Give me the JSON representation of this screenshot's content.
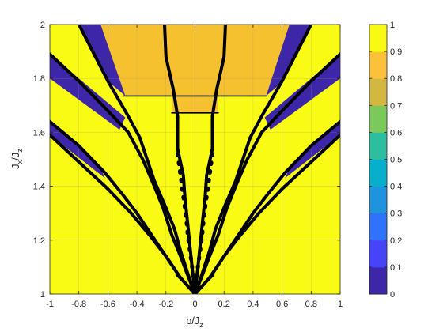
{
  "chart_data": {
    "type": "heatmap",
    "title": "",
    "xlabel": "b/J",
    "xlabel_sub": "z",
    "ylabel": "J",
    "ylabel_mid": "x",
    "ylabel_slash": "/J",
    "ylabel_sub": "z",
    "xlim": [
      -1,
      1
    ],
    "ylim": [
      1,
      2
    ],
    "x_ticks": [
      -1,
      -0.8,
      -0.6,
      -0.4,
      -0.2,
      0,
      0.2,
      0.4,
      0.6,
      0.8,
      1
    ],
    "x_tick_labels": [
      "-1",
      "-0.8",
      "-0.6",
      "-0.4",
      "-0.2",
      "0",
      "0.2",
      "0.4",
      "0.6",
      "0.8",
      "1"
    ],
    "y_ticks": [
      1,
      1.2,
      1.4,
      1.6,
      1.8,
      2
    ],
    "y_tick_labels": [
      "1",
      "1.2",
      "1.4",
      "1.6",
      "1.8",
      "2"
    ],
    "grid": true,
    "colorbar": {
      "range": [
        0,
        1
      ],
      "ticks": [
        0,
        0.1,
        0.2,
        0.3,
        0.4,
        0.5,
        0.6,
        0.7,
        0.8,
        0.9,
        1
      ],
      "tick_labels": [
        "0",
        "0.1",
        "0.2",
        "0.3",
        "0.4",
        "0.5",
        "0.6",
        "0.7",
        "0.8",
        "0.9",
        "1"
      ],
      "levels": [
        "#3e26a8",
        "#4743f8",
        "#2f72fb",
        "#1f93dd",
        "#08afcd",
        "#2dbe9f",
        "#7bc85b",
        "#d3b741",
        "#fbc13a",
        "#f9fa14",
        "#f9fb15"
      ]
    },
    "background_value": 1.0,
    "regions": [
      {
        "value": 0.85,
        "color": "#f6c12e",
        "shape": "top-plateau",
        "polygon": [
          [
            -0.65,
            2.0
          ],
          [
            0.65,
            2.0
          ],
          [
            0.49,
            1.735
          ],
          [
            0.16,
            1.735
          ],
          [
            0.16,
            1.672
          ],
          [
            -0.16,
            1.672
          ],
          [
            -0.16,
            1.735
          ],
          [
            -0.49,
            1.735
          ]
        ]
      },
      {
        "value": 0.05,
        "color": "#3e26a8",
        "shape": "band",
        "polygon": [
          [
            -0.8,
            2.0
          ],
          [
            -0.65,
            2.0
          ],
          [
            -0.48,
            1.735
          ],
          [
            -0.6,
            1.79
          ]
        ]
      },
      {
        "value": 0.05,
        "color": "#3e26a8",
        "shape": "band",
        "polygon": [
          [
            0.65,
            2.0
          ],
          [
            0.8,
            2.0
          ],
          [
            0.61,
            1.79
          ],
          [
            0.49,
            1.735
          ]
        ]
      },
      {
        "value": 0.05,
        "color": "#3e26a8",
        "shape": "band",
        "polygon": [
          [
            -1.0,
            1.89
          ],
          [
            -1.0,
            1.8
          ],
          [
            -0.52,
            1.61
          ],
          [
            -0.48,
            1.655
          ]
        ]
      },
      {
        "value": 0.05,
        "color": "#3e26a8",
        "shape": "band",
        "polygon": [
          [
            1.0,
            1.89
          ],
          [
            0.48,
            1.655
          ],
          [
            0.52,
            1.61
          ],
          [
            1.0,
            1.8
          ]
        ]
      },
      {
        "value": 0.05,
        "color": "#3e26a8",
        "shape": "band",
        "polygon": [
          [
            -1.0,
            1.64
          ],
          [
            -1.0,
            1.59
          ],
          [
            -0.62,
            1.43
          ],
          [
            -0.66,
            1.48
          ]
        ]
      },
      {
        "value": 0.05,
        "color": "#3e26a8",
        "shape": "band",
        "polygon": [
          [
            1.0,
            1.64
          ],
          [
            0.66,
            1.48
          ],
          [
            0.62,
            1.43
          ],
          [
            1.0,
            1.59
          ]
        ]
      }
    ],
    "boundary_curves": [
      {
        "style": "thick-solid",
        "points": [
          [
            -0.21,
            2.0
          ],
          [
            -0.2,
            1.88
          ],
          [
            -0.15,
            1.76
          ],
          [
            -0.12,
            1.66
          ],
          [
            -0.12,
            1.54
          ],
          [
            -0.08,
            1.44
          ],
          [
            -0.07,
            1.36
          ],
          [
            -0.05,
            1.26
          ],
          [
            -0.02,
            1.1
          ],
          [
            0,
            1.0
          ]
        ]
      },
      {
        "style": "thick-solid",
        "points": [
          [
            0.21,
            2.0
          ],
          [
            0.2,
            1.88
          ],
          [
            0.15,
            1.76
          ],
          [
            0.12,
            1.66
          ],
          [
            0.12,
            1.54
          ],
          [
            0.08,
            1.44
          ],
          [
            0.07,
            1.36
          ],
          [
            0.05,
            1.26
          ],
          [
            0.02,
            1.1
          ],
          [
            0,
            1.0
          ]
        ]
      },
      {
        "style": "thick-dotted",
        "points": [
          [
            -0.12,
            1.52
          ],
          [
            -0.1,
            1.44
          ],
          [
            -0.08,
            1.36
          ],
          [
            -0.06,
            1.28
          ],
          [
            -0.05,
            1.22
          ],
          [
            -0.03,
            1.14
          ],
          [
            -0.01,
            1.06
          ]
        ]
      },
      {
        "style": "thick-dotted",
        "points": [
          [
            0.12,
            1.52
          ],
          [
            0.1,
            1.44
          ],
          [
            0.08,
            1.36
          ],
          [
            0.06,
            1.28
          ],
          [
            0.05,
            1.22
          ],
          [
            0.03,
            1.14
          ],
          [
            0.01,
            1.06
          ]
        ]
      },
      {
        "style": "thick-solid",
        "points": [
          [
            -0.8,
            2.0
          ],
          [
            -0.6,
            1.79
          ],
          [
            -0.46,
            1.66
          ],
          [
            -0.38,
            1.58
          ],
          [
            -0.28,
            1.42
          ],
          [
            -0.2,
            1.32
          ],
          [
            -0.14,
            1.24
          ],
          [
            -0.1,
            1.16
          ],
          [
            -0.04,
            1.06
          ],
          [
            0,
            1.0
          ]
        ]
      },
      {
        "style": "thick-solid",
        "points": [
          [
            0.8,
            2.0
          ],
          [
            0.6,
            1.79
          ],
          [
            0.46,
            1.66
          ],
          [
            0.38,
            1.58
          ],
          [
            0.28,
            1.42
          ],
          [
            0.2,
            1.32
          ],
          [
            0.14,
            1.24
          ],
          [
            0.1,
            1.16
          ],
          [
            0.04,
            1.06
          ],
          [
            0,
            1.0
          ]
        ]
      },
      {
        "style": "thick-solid",
        "points": [
          [
            -1.0,
            1.89
          ],
          [
            -0.8,
            1.79
          ],
          [
            -0.6,
            1.68
          ],
          [
            -0.46,
            1.6
          ],
          [
            -0.36,
            1.5
          ],
          [
            -0.28,
            1.4
          ],
          [
            -0.22,
            1.32
          ],
          [
            -0.16,
            1.22
          ],
          [
            -0.1,
            1.14
          ],
          [
            -0.05,
            1.07
          ],
          [
            0,
            1.0
          ]
        ]
      },
      {
        "style": "thick-solid",
        "points": [
          [
            1.0,
            1.89
          ],
          [
            0.8,
            1.79
          ],
          [
            0.6,
            1.68
          ],
          [
            0.46,
            1.6
          ],
          [
            0.36,
            1.5
          ],
          [
            0.28,
            1.4
          ],
          [
            0.22,
            1.32
          ],
          [
            0.16,
            1.22
          ],
          [
            0.1,
            1.14
          ],
          [
            0.05,
            1.07
          ],
          [
            0,
            1.0
          ]
        ]
      },
      {
        "style": "thick-solid",
        "points": [
          [
            -1.0,
            1.64
          ],
          [
            -0.8,
            1.55
          ],
          [
            -0.62,
            1.45
          ],
          [
            -0.5,
            1.37
          ],
          [
            -0.4,
            1.3
          ],
          [
            -0.3,
            1.22
          ],
          [
            -0.2,
            1.14
          ],
          [
            -0.1,
            1.06
          ],
          [
            0,
            1.0
          ]
        ]
      },
      {
        "style": "thick-solid",
        "points": [
          [
            1.0,
            1.64
          ],
          [
            0.8,
            1.55
          ],
          [
            0.62,
            1.45
          ],
          [
            0.5,
            1.37
          ],
          [
            0.4,
            1.3
          ],
          [
            0.3,
            1.22
          ],
          [
            0.2,
            1.14
          ],
          [
            0.1,
            1.06
          ],
          [
            0,
            1.0
          ]
        ]
      },
      {
        "style": "thick-solid",
        "points": [
          [
            -1.0,
            1.59
          ],
          [
            -0.8,
            1.49
          ],
          [
            -0.6,
            1.39
          ],
          [
            -0.44,
            1.3
          ],
          [
            -0.3,
            1.21
          ],
          [
            -0.2,
            1.14
          ],
          [
            -0.1,
            1.06
          ],
          [
            0,
            1.0
          ]
        ]
      },
      {
        "style": "thick-solid",
        "points": [
          [
            1.0,
            1.59
          ],
          [
            0.8,
            1.49
          ],
          [
            0.6,
            1.39
          ],
          [
            0.44,
            1.3
          ],
          [
            0.3,
            1.21
          ],
          [
            0.2,
            1.14
          ],
          [
            0.1,
            1.06
          ],
          [
            0,
            1.0
          ]
        ]
      },
      {
        "style": "thin-solid",
        "points": [
          [
            -0.49,
            1.735
          ],
          [
            0.49,
            1.735
          ]
        ]
      },
      {
        "style": "thin-solid",
        "points": [
          [
            -0.16,
            1.672
          ],
          [
            0.16,
            1.672
          ]
        ]
      },
      {
        "style": "thin-solid",
        "points": [
          [
            -0.13,
            1.07
          ],
          [
            0,
            1.0
          ],
          [
            0.13,
            1.07
          ]
        ]
      }
    ]
  }
}
